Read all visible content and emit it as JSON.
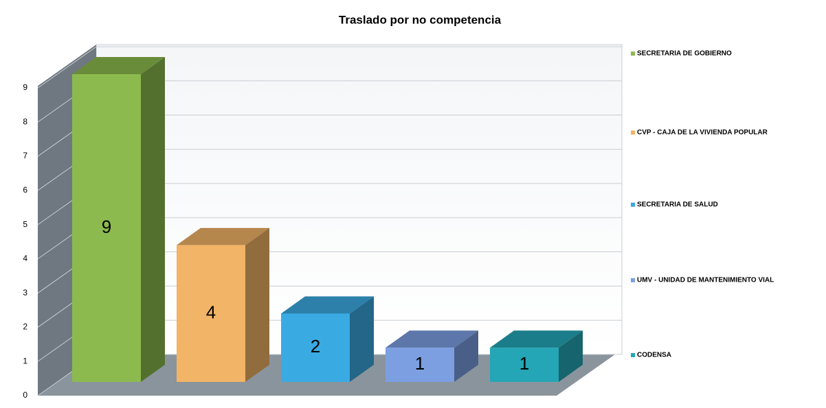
{
  "chart_data": {
    "type": "bar3d",
    "title": "Traslado por no competencia",
    "series": [
      {
        "name": "SECRETARIA DE GOBIERNO",
        "color": "#8cba4e",
        "values": [
          9
        ]
      },
      {
        "name": "CVP - CAJA DE LA VIVIENDA POPULAR",
        "color": "#f2b466",
        "values": [
          4
        ]
      },
      {
        "name": "SECRETARIA DE SALUD",
        "color": "#3aaae2",
        "values": [
          2
        ]
      },
      {
        "name": "UMV - UNIDAD DE MANTENIMIENTO VIAL",
        "color": "#7c9fe2",
        "values": [
          1
        ]
      },
      {
        "name": "CODENSA",
        "color": "#24a6b6",
        "values": [
          1
        ]
      }
    ],
    "ylim": [
      0,
      9
    ],
    "yticks": [
      0,
      1,
      2,
      3,
      4,
      5,
      6,
      7,
      8,
      9
    ],
    "grid": true
  }
}
